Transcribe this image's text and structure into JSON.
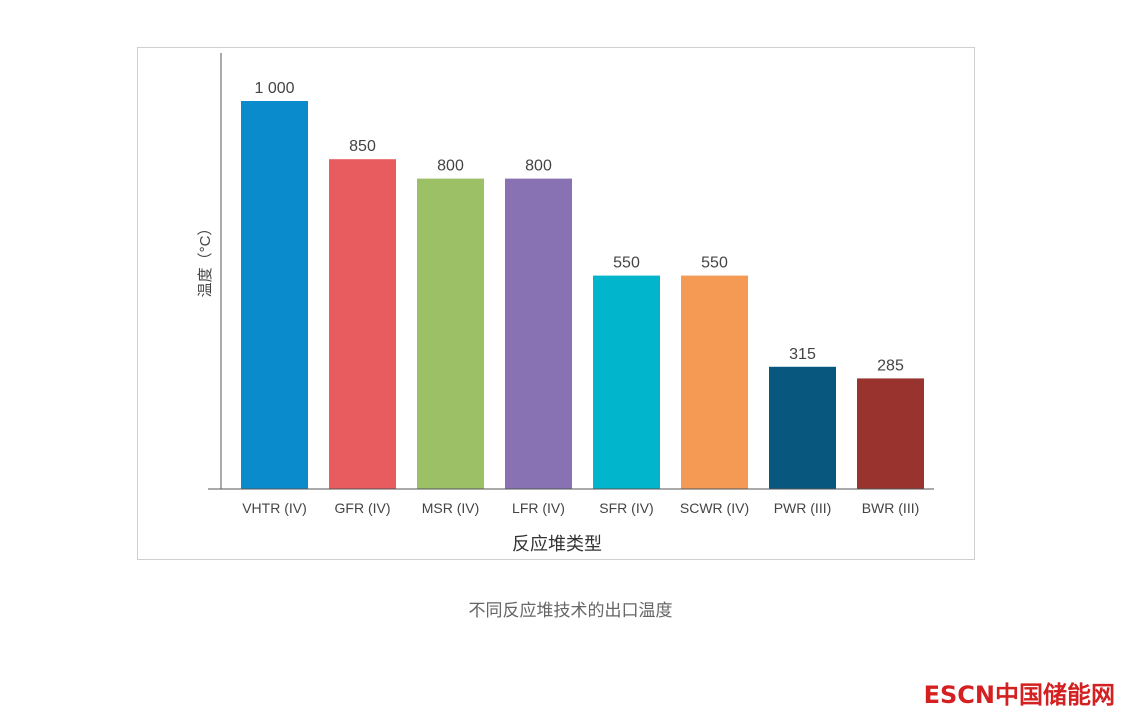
{
  "chart_data": {
    "type": "bar",
    "categories": [
      "VHTR (IV)",
      "GFR (IV)",
      "MSR (IV)",
      "LFR (IV)",
      "SFR (IV)",
      "SCWR (IV)",
      "PWR (III)",
      "BWR (III)"
    ],
    "values": [
      1000,
      850,
      800,
      800,
      550,
      550,
      315,
      285
    ],
    "value_labels": [
      "1 000",
      "850",
      "800",
      "800",
      "550",
      "550",
      "315",
      "285"
    ],
    "colors": [
      "#0a8ccc",
      "#e85b5e",
      "#9cc065",
      "#8872b3",
      "#00b5cc",
      "#f59a55",
      "#07577f",
      "#98342d"
    ],
    "xlabel": "反应堆类型",
    "ylabel": "温度（°C）",
    "ylim": [
      0,
      1100
    ],
    "grid": false,
    "legend": "none"
  },
  "caption": "不同反应堆技术的出口温度",
  "watermark": "ESCN中国储能网"
}
